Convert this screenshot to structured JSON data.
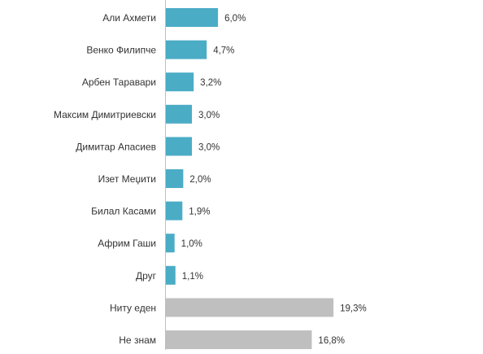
{
  "chart_data": {
    "type": "bar",
    "orientation": "horizontal",
    "title": "",
    "xlabel": "",
    "ylabel": "",
    "xlim": [
      0,
      25
    ],
    "grid": false,
    "categories": [
      "Али Ахмети",
      "Венко Филипче",
      "Арбен Таравари",
      "Максим Димитриевски",
      "Димитар Апасиев",
      "Изет Меџити",
      "Билал Касами",
      "Африм Гаши",
      "Друг",
      "Ниту еден",
      "Не знам"
    ],
    "values": [
      6.0,
      4.7,
      3.2,
      3.0,
      3.0,
      2.0,
      1.9,
      1.0,
      1.1,
      19.3,
      16.8
    ],
    "value_labels": [
      "6,0%",
      "4,7%",
      "3,2%",
      "3,0%",
      "3,0%",
      "2,0%",
      "1,9%",
      "1,0%",
      "1,1%",
      "19,3%",
      "16,8%"
    ],
    "colors": {
      "candidate": "#4bacc6",
      "other_answer": "#bfbfbf",
      "axis": "#bfbfbf"
    },
    "bar_color_groups": [
      "candidate",
      "candidate",
      "candidate",
      "candidate",
      "candidate",
      "candidate",
      "candidate",
      "candidate",
      "candidate",
      "other_answer",
      "other_answer"
    ]
  }
}
